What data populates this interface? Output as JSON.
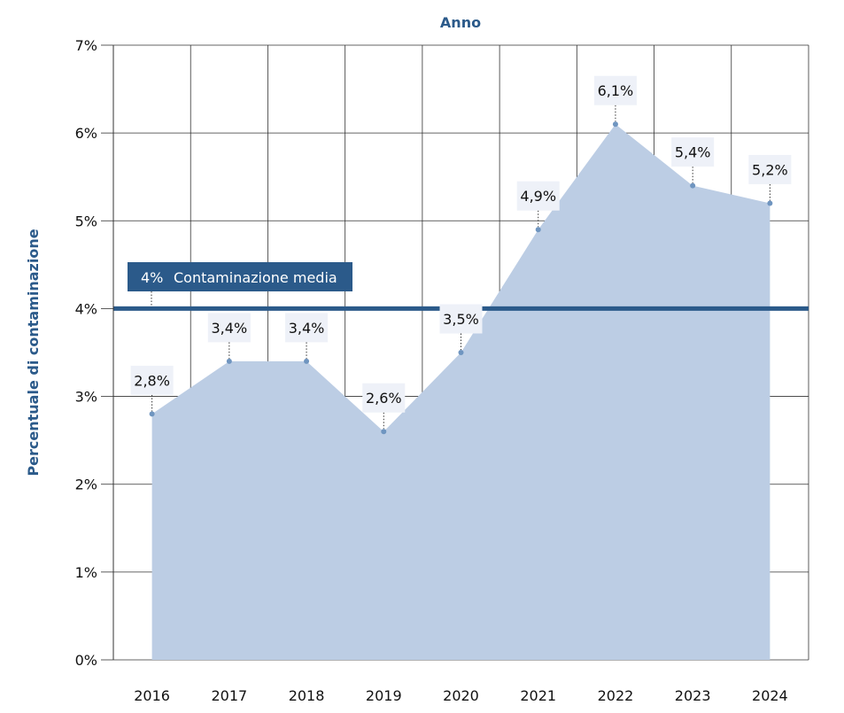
{
  "chart_data": {
    "type": "area",
    "title": "Anno",
    "xlabel": "",
    "ylabel": "Percentuale di contaminazione",
    "categories": [
      "2016",
      "2017",
      "2018",
      "2019",
      "2020",
      "2021",
      "2022",
      "2023",
      "2024"
    ],
    "values": [
      2.8,
      3.4,
      3.4,
      2.6,
      3.5,
      4.9,
      6.1,
      5.4,
      5.2
    ],
    "data_labels": [
      "2,8%",
      "3,4%",
      "3,4%",
      "2,6%",
      "3,5%",
      "4,9%",
      "6,1%",
      "5,4%",
      "5,2%"
    ],
    "ylim": [
      0,
      7
    ],
    "yticks": [
      0,
      1,
      2,
      3,
      4,
      5,
      6,
      7
    ],
    "ytick_labels": [
      "0%",
      "1%",
      "2%",
      "3%",
      "4%",
      "5%",
      "6%",
      "7%"
    ],
    "grid": true,
    "reference_line": {
      "value": 4,
      "value_label": "4%",
      "label": "Contaminazione media",
      "color": "#2b5a8a"
    },
    "colors": {
      "area_fill": "#bccde4",
      "marker": "#6f95c0",
      "axis_title": "#2b5a8a",
      "label_bg": "#eef1f8",
      "grid": "#333333"
    }
  }
}
